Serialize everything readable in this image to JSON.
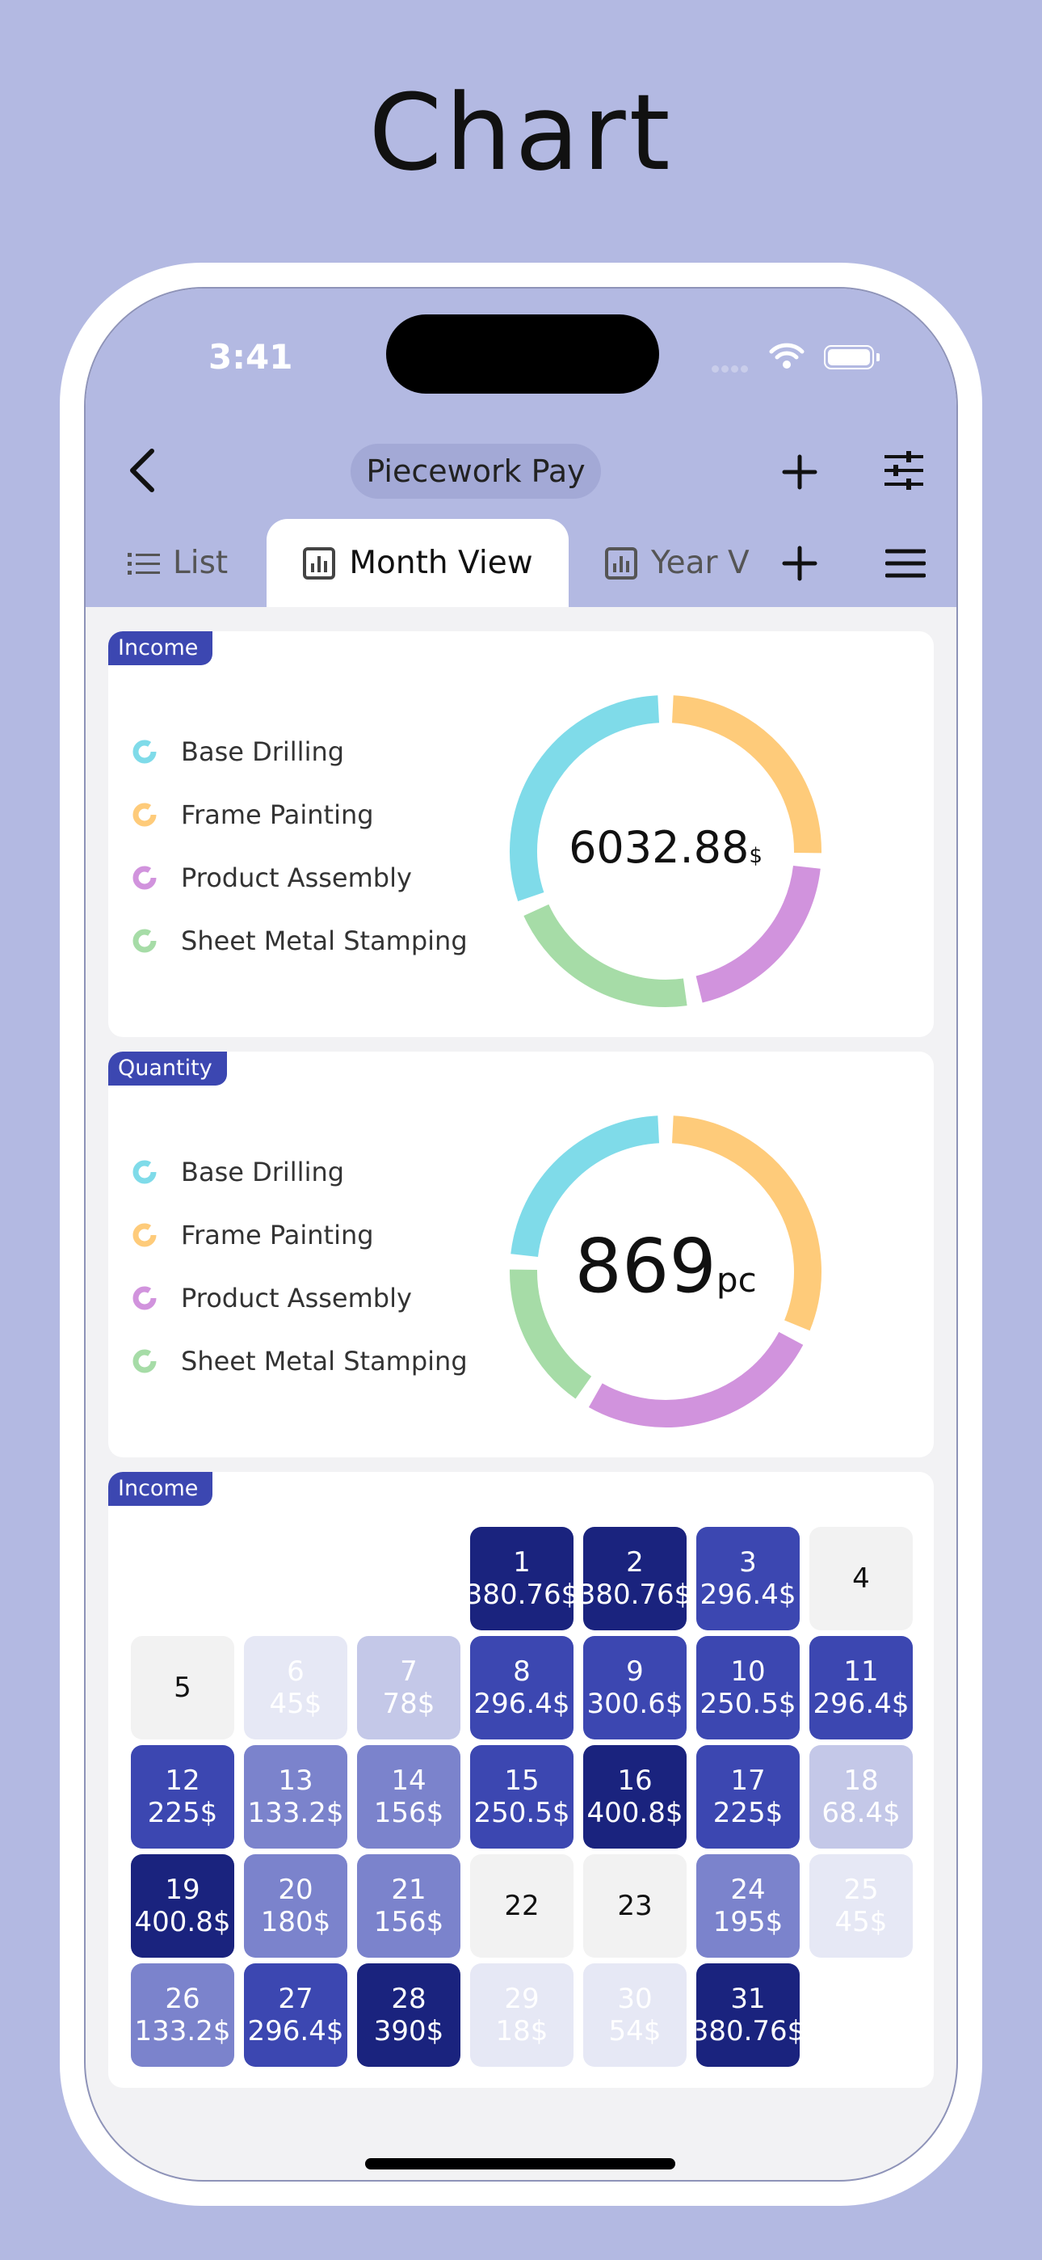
{
  "page_title": "Chart",
  "status_bar": {
    "time": "3:41"
  },
  "nav": {
    "title": "Piecework Pay"
  },
  "tabs": [
    {
      "label": "List",
      "icon": "list-icon"
    },
    {
      "label": "Month View",
      "icon": "bar-chart-icon"
    },
    {
      "label": "Year V",
      "icon": "bar-chart-icon"
    }
  ],
  "colors": {
    "accent": "#3c47b1",
    "header_bg": "#b3b9e2",
    "cyan": "#7fdbe9",
    "orange": "#fecb7a",
    "purple": "#d193dd",
    "green": "#a6dca7"
  },
  "income_card": {
    "tag": "Income",
    "legend": [
      "Base Drilling",
      "Frame Painting",
      "Product Assembly",
      "Sheet Metal Stamping"
    ],
    "total_value": "6032.88",
    "total_unit": "$",
    "shares": [
      0.31,
      0.26,
      0.21,
      0.22
    ]
  },
  "quantity_card": {
    "tag": "Quantity",
    "legend": [
      "Base Drilling",
      "Frame Painting",
      "Product Assembly",
      "Sheet Metal Stamping"
    ],
    "total_value": "869",
    "total_unit": "pc",
    "shares": [
      0.24,
      0.32,
      0.27,
      0.17
    ]
  },
  "calendar": {
    "tag": "Income",
    "days": [
      {
        "day": "1",
        "amount": "380.76$",
        "level": 5
      },
      {
        "day": "2",
        "amount": "380.76$",
        "level": 5
      },
      {
        "day": "3",
        "amount": "296.4$",
        "level": 4
      },
      {
        "day": "4",
        "amount": "",
        "level": 0
      },
      {
        "day": "5",
        "amount": "",
        "level": 0
      },
      {
        "day": "6",
        "amount": "45$",
        "level": 1
      },
      {
        "day": "7",
        "amount": "78$",
        "level": 2
      },
      {
        "day": "8",
        "amount": "296.4$",
        "level": 4
      },
      {
        "day": "9",
        "amount": "300.6$",
        "level": 4
      },
      {
        "day": "10",
        "amount": "250.5$",
        "level": 4
      },
      {
        "day": "11",
        "amount": "296.4$",
        "level": 4
      },
      {
        "day": "12",
        "amount": "225$",
        "level": 4
      },
      {
        "day": "13",
        "amount": "133.2$",
        "level": 3
      },
      {
        "day": "14",
        "amount": "156$",
        "level": 3
      },
      {
        "day": "15",
        "amount": "250.5$",
        "level": 4
      },
      {
        "day": "16",
        "amount": "400.8$",
        "level": 5
      },
      {
        "day": "17",
        "amount": "225$",
        "level": 4
      },
      {
        "day": "18",
        "amount": "68.4$",
        "level": 2
      },
      {
        "day": "19",
        "amount": "400.8$",
        "level": 5
      },
      {
        "day": "20",
        "amount": "180$",
        "level": 3
      },
      {
        "day": "21",
        "amount": "156$",
        "level": 3
      },
      {
        "day": "22",
        "amount": "",
        "level": 0
      },
      {
        "day": "23",
        "amount": "",
        "level": 0
      },
      {
        "day": "24",
        "amount": "195$",
        "level": 3
      },
      {
        "day": "25",
        "amount": "45$",
        "level": 1
      },
      {
        "day": "26",
        "amount": "133.2$",
        "level": 3
      },
      {
        "day": "27",
        "amount": "296.4$",
        "level": 4
      },
      {
        "day": "28",
        "amount": "390$",
        "level": 5
      },
      {
        "day": "29",
        "amount": "18$",
        "level": 1
      },
      {
        "day": "30",
        "amount": "54$",
        "level": 1
      },
      {
        "day": "31",
        "amount": "380.76$",
        "level": 5
      }
    ]
  }
}
